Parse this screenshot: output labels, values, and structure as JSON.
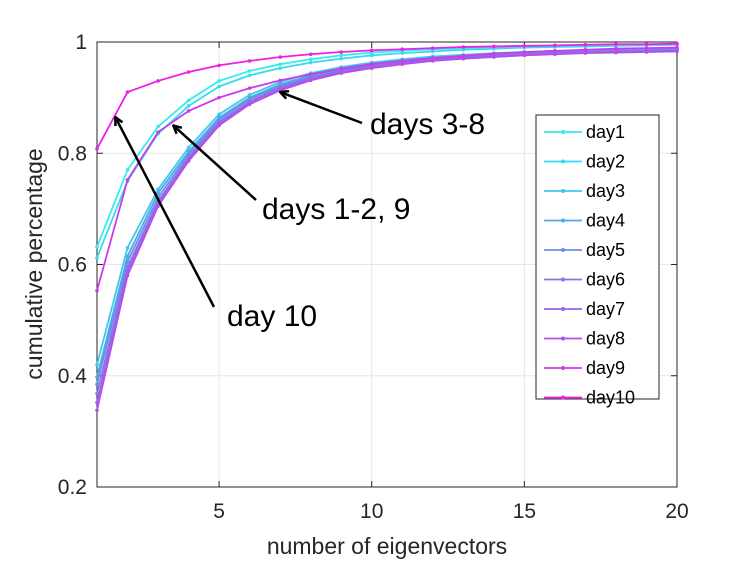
{
  "chart_data": {
    "type": "line",
    "title": "",
    "xlabel": "number of eigenvectors",
    "ylabel": "cumulative percentage",
    "xlim": [
      1,
      20
    ],
    "ylim": [
      0.2,
      1
    ],
    "xticks": [
      "5",
      "10",
      "15",
      "20"
    ],
    "yticks": [
      "0.2",
      "0.4",
      "0.6",
      "0.8",
      "1"
    ],
    "grid": true,
    "legend_position": "right",
    "x": [
      1,
      2,
      3,
      4,
      5,
      6,
      7,
      8,
      9,
      10,
      11,
      12,
      13,
      14,
      15,
      16,
      17,
      18,
      19,
      20
    ],
    "series": [
      {
        "name": "day1",
        "color": "#33ecec",
        "values": [
          0.632,
          0.77,
          0.848,
          0.895,
          0.93,
          0.948,
          0.96,
          0.969,
          0.976,
          0.981,
          0.984,
          0.987,
          0.989,
          0.991,
          0.992,
          0.993,
          0.994,
          0.995,
          0.995,
          0.996
        ]
      },
      {
        "name": "day2",
        "color": "#36dcee",
        "values": [
          0.612,
          0.75,
          0.835,
          0.885,
          0.92,
          0.94,
          0.953,
          0.963,
          0.97,
          0.976,
          0.98,
          0.983,
          0.986,
          0.988,
          0.99,
          0.991,
          0.992,
          0.993,
          0.994,
          0.995
        ]
      },
      {
        "name": "day3",
        "color": "#3cc9ec",
        "values": [
          0.42,
          0.63,
          0.735,
          0.81,
          0.87,
          0.905,
          0.928,
          0.944,
          0.955,
          0.963,
          0.969,
          0.974,
          0.977,
          0.98,
          0.982,
          0.984,
          0.985,
          0.986,
          0.987,
          0.988
        ]
      },
      {
        "name": "day4",
        "color": "#4fa8e8",
        "values": [
          0.398,
          0.615,
          0.728,
          0.803,
          0.864,
          0.9,
          0.924,
          0.94,
          0.952,
          0.961,
          0.967,
          0.972,
          0.975,
          0.978,
          0.98,
          0.982,
          0.983,
          0.985,
          0.986,
          0.987
        ]
      },
      {
        "name": "day5",
        "color": "#6b8ee6",
        "values": [
          0.385,
          0.605,
          0.72,
          0.798,
          0.86,
          0.897,
          0.921,
          0.938,
          0.95,
          0.959,
          0.965,
          0.97,
          0.974,
          0.977,
          0.979,
          0.981,
          0.982,
          0.984,
          0.985,
          0.986
        ]
      },
      {
        "name": "day6",
        "color": "#8477e8",
        "values": [
          0.368,
          0.595,
          0.713,
          0.793,
          0.856,
          0.893,
          0.918,
          0.935,
          0.948,
          0.957,
          0.964,
          0.969,
          0.973,
          0.976,
          0.978,
          0.98,
          0.982,
          0.983,
          0.984,
          0.985
        ]
      },
      {
        "name": "day7",
        "color": "#9c63ea",
        "values": [
          0.352,
          0.588,
          0.71,
          0.79,
          0.853,
          0.891,
          0.916,
          0.933,
          0.946,
          0.955,
          0.962,
          0.967,
          0.971,
          0.974,
          0.977,
          0.979,
          0.981,
          0.982,
          0.983,
          0.984
        ]
      },
      {
        "name": "day8",
        "color": "#b24fe8",
        "values": [
          0.338,
          0.58,
          0.705,
          0.786,
          0.85,
          0.888,
          0.913,
          0.931,
          0.944,
          0.953,
          0.96,
          0.966,
          0.97,
          0.973,
          0.976,
          0.978,
          0.98,
          0.981,
          0.982,
          0.983
        ]
      },
      {
        "name": "day9",
        "color": "#cc3aec",
        "values": [
          0.553,
          0.752,
          0.838,
          0.876,
          0.9,
          0.917,
          0.931,
          0.942,
          0.952,
          0.96,
          0.966,
          0.971,
          0.975,
          0.979,
          0.982,
          0.984,
          0.986,
          0.988,
          0.989,
          0.99
        ]
      },
      {
        "name": "day10",
        "color": "#ee1ee8",
        "values": [
          0.808,
          0.91,
          0.93,
          0.946,
          0.958,
          0.966,
          0.973,
          0.978,
          0.982,
          0.985,
          0.987,
          0.989,
          0.991,
          0.992,
          0.993,
          0.994,
          0.995,
          0.996,
          0.996,
          0.997
        ]
      }
    ],
    "annotations": [
      {
        "text": "days 3-8",
        "arrow_to": [
          7,
          0.91
        ]
      },
      {
        "text": "days 1-2, 9",
        "arrow_to": [
          3.5,
          0.85
        ]
      },
      {
        "text": "day 10",
        "arrow_to": [
          1.6,
          0.865
        ]
      }
    ]
  }
}
